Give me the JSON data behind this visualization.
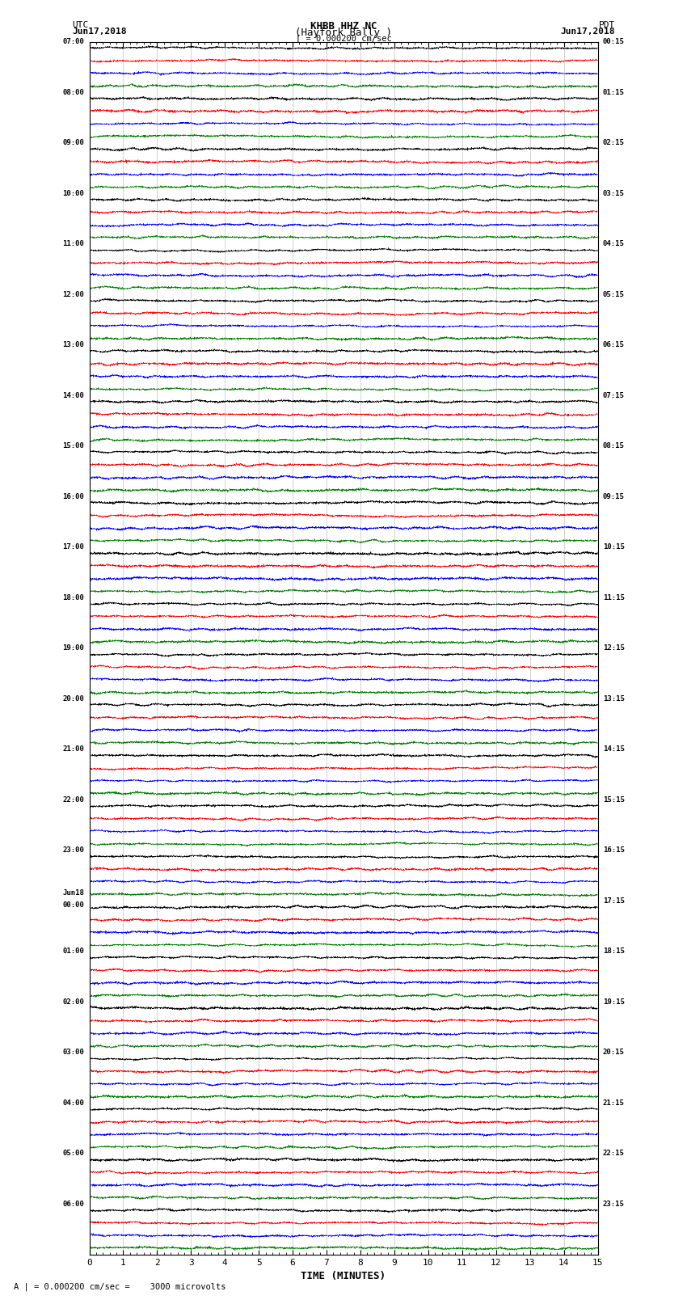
{
  "title_line1": "KHBB HHZ NC",
  "title_line2": "(Hayfork Bally )",
  "left_label_top": "UTC",
  "left_label_date": "Jun17,2018",
  "right_label_top": "PDT",
  "right_label_date": "Jun17,2018",
  "xlabel": "TIME (MINUTES)",
  "x_ticks": [
    0,
    1,
    2,
    3,
    4,
    5,
    6,
    7,
    8,
    9,
    10,
    11,
    12,
    13,
    14,
    15
  ],
  "time_minutes": 15,
  "colors": [
    "black",
    "red",
    "blue",
    "green"
  ],
  "background_color": "white",
  "fig_width": 8.5,
  "fig_height": 16.13,
  "left_times_utc": [
    "07:00",
    "",
    "",
    "",
    "08:00",
    "",
    "",
    "",
    "09:00",
    "",
    "",
    "",
    "10:00",
    "",
    "",
    "",
    "11:00",
    "",
    "",
    "",
    "12:00",
    "",
    "",
    "",
    "13:00",
    "",
    "",
    "",
    "14:00",
    "",
    "",
    "",
    "15:00",
    "",
    "",
    "",
    "16:00",
    "",
    "",
    "",
    "17:00",
    "",
    "",
    "",
    "18:00",
    "",
    "",
    "",
    "19:00",
    "",
    "",
    "",
    "20:00",
    "",
    "",
    "",
    "21:00",
    "",
    "",
    "",
    "22:00",
    "",
    "",
    "",
    "23:00",
    "",
    "",
    "",
    "Jun18\n00:00",
    "",
    "",
    "",
    "01:00",
    "",
    "",
    "",
    "02:00",
    "",
    "",
    "",
    "03:00",
    "",
    "",
    "",
    "04:00",
    "",
    "",
    "",
    "05:00",
    "",
    "",
    "",
    "06:00",
    "",
    "",
    ""
  ],
  "right_times_pdt": [
    "00:15",
    "",
    "",
    "",
    "01:15",
    "",
    "",
    "",
    "02:15",
    "",
    "",
    "",
    "03:15",
    "",
    "",
    "",
    "04:15",
    "",
    "",
    "",
    "05:15",
    "",
    "",
    "",
    "06:15",
    "",
    "",
    "",
    "07:15",
    "",
    "",
    "",
    "08:15",
    "",
    "",
    "",
    "09:15",
    "",
    "",
    "",
    "10:15",
    "",
    "",
    "",
    "11:15",
    "",
    "",
    "",
    "12:15",
    "",
    "",
    "",
    "13:15",
    "",
    "",
    "",
    "14:15",
    "",
    "",
    "",
    "15:15",
    "",
    "",
    "",
    "16:15",
    "",
    "",
    "",
    "17:15",
    "",
    "",
    "",
    "18:15",
    "",
    "",
    "",
    "19:15",
    "",
    "",
    "",
    "20:15",
    "",
    "",
    "",
    "21:15",
    "",
    "",
    "",
    "22:15",
    "",
    "",
    "",
    "23:15",
    "",
    "",
    ""
  ],
  "bottom_note": "A |  = 0.000200 cm/sec =    3000 microvolts"
}
